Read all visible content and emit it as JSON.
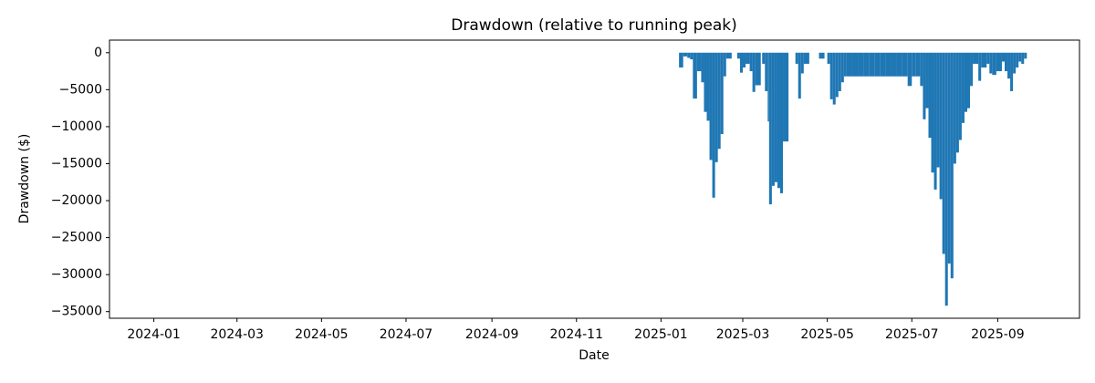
{
  "chart_data": {
    "type": "bar",
    "title": "Drawdown (relative to running peak)",
    "x_label": "Date",
    "y_label": "Drawdown ($)",
    "color": "#1f77b4",
    "x": [
      "2025-01-14",
      "2025-01-17",
      "2025-01-20",
      "2025-01-22",
      "2025-01-24",
      "2025-01-27",
      "2025-01-30",
      "2025-02-01",
      "2025-02-03",
      "2025-02-05",
      "2025-02-07",
      "2025-02-09",
      "2025-02-11",
      "2025-02-13",
      "2025-02-15",
      "2025-02-17",
      "2025-02-25",
      "2025-02-27",
      "2025-03-01",
      "2025-03-03",
      "2025-03-06",
      "2025-03-08",
      "2025-03-10",
      "2025-03-15",
      "2025-03-17",
      "2025-03-19",
      "2025-03-20",
      "2025-03-22",
      "2025-03-24",
      "2025-03-26",
      "2025-03-28",
      "2025-03-30",
      "2025-04-08",
      "2025-04-10",
      "2025-04-12",
      "2025-04-14",
      "2025-04-25",
      "2025-05-01",
      "2025-05-03",
      "2025-05-05",
      "2025-05-07",
      "2025-05-09",
      "2025-05-11",
      "2025-05-13",
      "2025-05-15",
      "2025-05-19",
      "2025-05-23",
      "2025-05-27",
      "2025-05-31",
      "2025-06-04",
      "2025-06-08",
      "2025-06-12",
      "2025-06-16",
      "2025-06-20",
      "2025-06-24",
      "2025-06-28",
      "2025-07-01",
      "2025-07-04",
      "2025-07-07",
      "2025-07-09",
      "2025-07-11",
      "2025-07-13",
      "2025-07-15",
      "2025-07-17",
      "2025-07-19",
      "2025-07-21",
      "2025-07-23",
      "2025-07-25",
      "2025-07-27",
      "2025-07-29",
      "2025-07-31",
      "2025-08-02",
      "2025-08-04",
      "2025-08-06",
      "2025-08-08",
      "2025-08-10",
      "2025-08-12",
      "2025-08-14",
      "2025-08-18",
      "2025-08-20",
      "2025-08-24",
      "2025-08-26",
      "2025-08-28",
      "2025-08-31",
      "2025-09-04",
      "2025-09-06",
      "2025-09-08",
      "2025-09-10",
      "2025-09-12",
      "2025-09-14",
      "2025-09-16",
      "2025-09-18",
      "2025-09-20"
    ],
    "values": [
      -2000,
      -500,
      -700,
      -900,
      -6200,
      -2500,
      -4000,
      -8000,
      -9200,
      -14500,
      -19600,
      -14800,
      -13000,
      -11000,
      -3200,
      -800,
      -800,
      -2700,
      -2000,
      -1500,
      -2500,
      -5300,
      -4400,
      -1500,
      -5200,
      -9300,
      -20500,
      -18000,
      -17500,
      -18300,
      -19000,
      -12000,
      -1500,
      -6200,
      -2800,
      -1500,
      -800,
      -1500,
      -6300,
      -7000,
      -6000,
      -5200,
      -4000,
      -3200,
      -3200,
      -3200,
      -3200,
      -3200,
      -3200,
      -3200,
      -3200,
      -3200,
      -3200,
      -3200,
      -3200,
      -4500,
      -3200,
      -3200,
      -4500,
      -9000,
      -7500,
      -11500,
      -16200,
      -18500,
      -15500,
      -19800,
      -27200,
      -34200,
      -28500,
      -30500,
      -15000,
      -13500,
      -11800,
      -9500,
      -8000,
      -7500,
      -4500,
      -1500,
      -3800,
      -2000,
      -1500,
      -2800,
      -3000,
      -2500,
      -1200,
      -2500,
      -3500,
      -5200,
      -2800,
      -2000,
      -1200,
      -1500,
      -800
    ],
    "xlim": [
      "2023-11-30",
      "2025-10-30"
    ],
    "xticks": [
      {
        "value": "2024-01-01",
        "label": "2024-01"
      },
      {
        "value": "2024-03-01",
        "label": "2024-03"
      },
      {
        "value": "2024-05-01",
        "label": "2024-05"
      },
      {
        "value": "2024-07-01",
        "label": "2024-07"
      },
      {
        "value": "2024-09-01",
        "label": "2024-09"
      },
      {
        "value": "2024-11-01",
        "label": "2024-11"
      },
      {
        "value": "2025-01-01",
        "label": "2025-01"
      },
      {
        "value": "2025-03-01",
        "label": "2025-03"
      },
      {
        "value": "2025-05-01",
        "label": "2025-05"
      },
      {
        "value": "2025-07-01",
        "label": "2025-07"
      },
      {
        "value": "2025-09-01",
        "label": "2025-09"
      }
    ],
    "ylim": [
      -35900,
      1700
    ],
    "yticks": [
      0,
      {
        "value": -5000,
        "label": "−5000"
      },
      {
        "value": -10000,
        "label": "−10000"
      },
      {
        "value": -15000,
        "label": "−15000"
      },
      {
        "value": -20000,
        "label": "−20000"
      },
      {
        "value": -25000,
        "label": "−25000"
      },
      {
        "value": -30000,
        "label": "−30000"
      },
      {
        "value": -35000,
        "label": "−35000"
      }
    ]
  }
}
